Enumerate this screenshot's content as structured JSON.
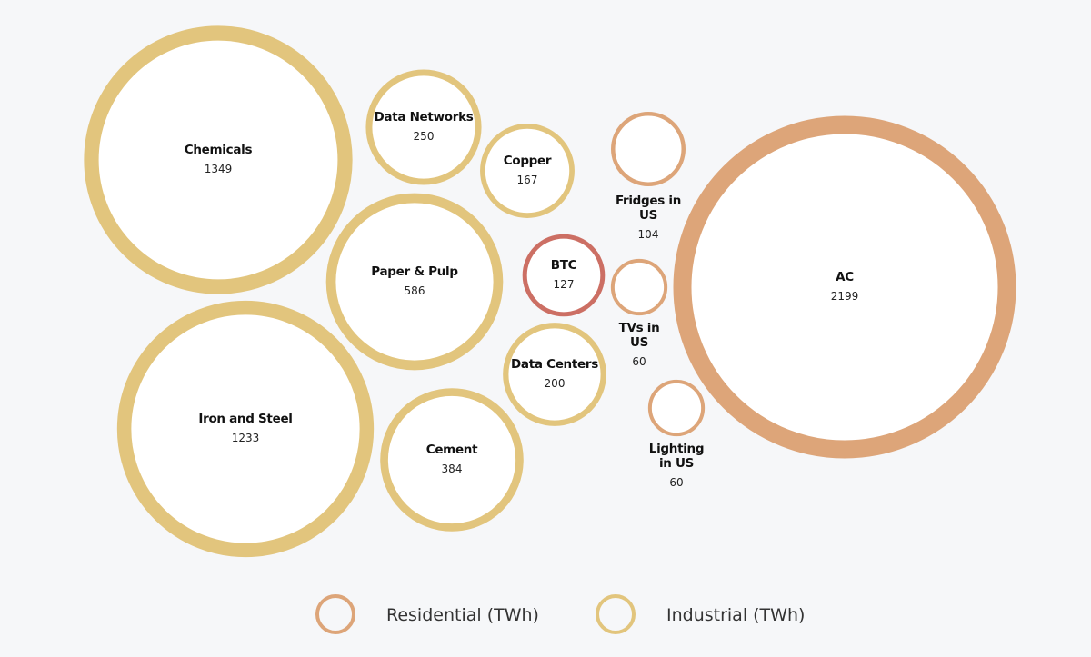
{
  "chart_data": {
    "type": "bubble",
    "title": "",
    "series": [
      {
        "name": "Residential (TWh)",
        "color": "#dda579"
      },
      {
        "name": "Industrial (TWh)",
        "color": "#e2c57d"
      },
      {
        "name": "BTC",
        "color": "#cc6f64"
      }
    ],
    "bubbles": [
      {
        "label": [
          "Chemicals"
        ],
        "value": 1349,
        "series": "Industrial (TWh)"
      },
      {
        "label": [
          "Data Networks"
        ],
        "value": 250,
        "series": "Industrial (TWh)"
      },
      {
        "label": [
          "Copper"
        ],
        "value": 167,
        "series": "Industrial (TWh)"
      },
      {
        "label": [
          "Paper & Pulp"
        ],
        "value": 586,
        "series": "Industrial (TWh)"
      },
      {
        "label": [
          "BTC"
        ],
        "value": 127,
        "series": "BTC"
      },
      {
        "label": [
          "Iron and Steel"
        ],
        "value": 1233,
        "series": "Industrial (TWh)"
      },
      {
        "label": [
          "Data Centers"
        ],
        "value": 200,
        "series": "Industrial (TWh)"
      },
      {
        "label": [
          "Cement"
        ],
        "value": 384,
        "series": "Industrial (TWh)"
      },
      {
        "label": [
          "Fridges in",
          "US"
        ],
        "value": 104,
        "series": "Residential (TWh)"
      },
      {
        "label": [
          "TVs in",
          "US"
        ],
        "value": 60,
        "series": "Residential (TWh)"
      },
      {
        "label": [
          "Lighting",
          "in US"
        ],
        "value": 60,
        "series": "Residential (TWh)"
      },
      {
        "label": [
          "AC"
        ],
        "value": 2199,
        "series": "Residential (TWh)"
      }
    ],
    "legend": {
      "placement": "bottom-center",
      "items": [
        "Residential (TWh)",
        "Industrial (TWh)"
      ]
    }
  }
}
